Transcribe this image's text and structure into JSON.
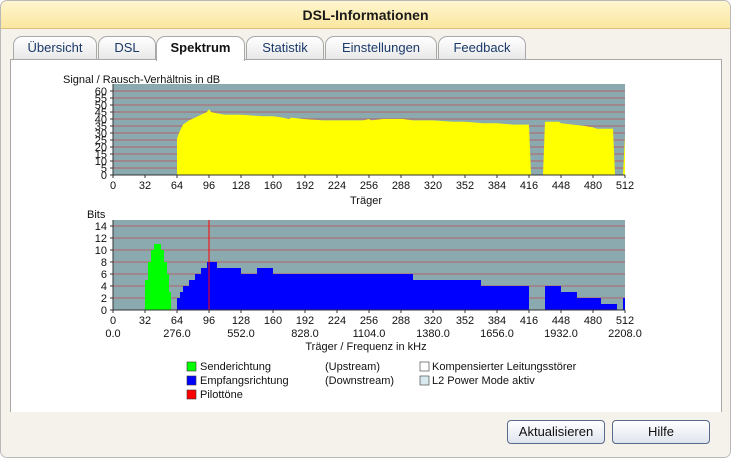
{
  "window": {
    "title": "DSL-Informationen"
  },
  "tabs": [
    {
      "label": "Übersicht"
    },
    {
      "label": "DSL"
    },
    {
      "label": "Spektrum"
    },
    {
      "label": "Statistik"
    },
    {
      "label": "Einstellungen"
    },
    {
      "label": "Feedback"
    }
  ],
  "active_tab": "Spektrum",
  "colors": {
    "plot_background": "#8aaab0",
    "snr_fill": "#ffff00",
    "upstream": "#00ff00",
    "downstream": "#0000ff",
    "pilot": "#ff0000",
    "grid": "#c24a4a"
  },
  "chart_data": [
    {
      "type": "area",
      "title": "Signal / Rausch-Verhältnis in dB",
      "xlabel": "Träger",
      "xlim": [
        0,
        512
      ],
      "ylim": [
        0,
        65
      ],
      "xticks": [
        0,
        32,
        64,
        96,
        128,
        160,
        192,
        224,
        256,
        288,
        320,
        352,
        384,
        416,
        448,
        480,
        512
      ],
      "yticks": [
        0,
        5,
        10,
        15,
        20,
        25,
        30,
        35,
        40,
        45,
        50,
        55,
        60
      ],
      "series": [
        {
          "x": [
            64,
            66,
            70,
            76,
            82,
            88,
            94,
            96,
            98,
            104,
            112,
            128,
            150,
            160,
            170,
            176,
            178,
            190,
            210,
            230,
            250,
            256,
            258,
            270,
            290,
            300,
            320,
            340,
            352,
            370,
            384,
            400,
            416,
            418,
            430,
            432,
            446,
            448,
            460,
            472,
            480,
            484,
            500,
            502,
            510,
            512
          ],
          "y": [
            26,
            30,
            36,
            39,
            41,
            43,
            45,
            47,
            45,
            44,
            43,
            43,
            42,
            42,
            41,
            40,
            41,
            40,
            39,
            39,
            39,
            40,
            39,
            40,
            40,
            39,
            39,
            38,
            38,
            37,
            37,
            36,
            36,
            0,
            0,
            38,
            38,
            37,
            36,
            35,
            34,
            33,
            33,
            0,
            0,
            28
          ]
        }
      ]
    },
    {
      "type": "bar",
      "title": "Bits",
      "xlabel": "Träger / Frequenz in kHz",
      "xlim": [
        0,
        512
      ],
      "ylim": [
        0,
        15
      ],
      "xticks": [
        0,
        32,
        64,
        96,
        128,
        160,
        192,
        224,
        256,
        288,
        320,
        352,
        384,
        416,
        448,
        480,
        512
      ],
      "yticks": [
        0,
        2,
        4,
        6,
        8,
        10,
        12,
        14
      ],
      "freq_ticks": [
        "0.0",
        "276.0",
        "552.0",
        "828.0",
        "1104.0",
        "1380.0",
        "1656.0",
        "1932.0",
        "2208.0"
      ],
      "series": [
        {
          "name": "Senderichtung",
          "segments": [
            {
              "from": 32,
              "to": 35,
              "bits": 5
            },
            {
              "from": 35,
              "to": 38,
              "bits": 8
            },
            {
              "from": 38,
              "to": 41,
              "bits": 10
            },
            {
              "from": 41,
              "to": 48,
              "bits": 11
            },
            {
              "from": 48,
              "to": 51,
              "bits": 10
            },
            {
              "from": 51,
              "to": 54,
              "bits": 8
            },
            {
              "from": 54,
              "to": 56,
              "bits": 6
            },
            {
              "from": 56,
              "to": 58,
              "bits": 3
            }
          ]
        },
        {
          "name": "Empfangsrichtung",
          "segments": [
            {
              "from": 64,
              "to": 67,
              "bits": 2
            },
            {
              "from": 67,
              "to": 70,
              "bits": 3
            },
            {
              "from": 70,
              "to": 76,
              "bits": 4
            },
            {
              "from": 76,
              "to": 82,
              "bits": 5
            },
            {
              "from": 82,
              "to": 88,
              "bits": 6
            },
            {
              "from": 88,
              "to": 94,
              "bits": 7
            },
            {
              "from": 94,
              "to": 104,
              "bits": 8
            },
            {
              "from": 104,
              "to": 128,
              "bits": 7
            },
            {
              "from": 128,
              "to": 144,
              "bits": 6
            },
            {
              "from": 144,
              "to": 160,
              "bits": 7
            },
            {
              "from": 160,
              "to": 300,
              "bits": 6
            },
            {
              "from": 300,
              "to": 340,
              "bits": 5
            },
            {
              "from": 340,
              "to": 368,
              "bits": 5
            },
            {
              "from": 368,
              "to": 416,
              "bits": 4
            },
            {
              "from": 432,
              "to": 448,
              "bits": 4
            },
            {
              "from": 448,
              "to": 464,
              "bits": 3
            },
            {
              "from": 464,
              "to": 488,
              "bits": 2
            },
            {
              "from": 488,
              "to": 504,
              "bits": 1
            },
            {
              "from": 510,
              "to": 512,
              "bits": 2
            }
          ]
        },
        {
          "name": "Pilottöne",
          "pilot_carrier": 96
        }
      ]
    }
  ],
  "legend": {
    "upstream_label": "Senderichtung",
    "upstream_dir": "(Upstream)",
    "downstream_label": "Empfangsrichtung",
    "downstream_dir": "(Downstream)",
    "pilot_label": "Pilottöne",
    "crosstalk_label": "Kompensierter Leitungsstörer",
    "l2_label": "L2 Power Mode aktiv"
  },
  "buttons": {
    "refresh": "Aktualisieren",
    "help": "Hilfe"
  }
}
